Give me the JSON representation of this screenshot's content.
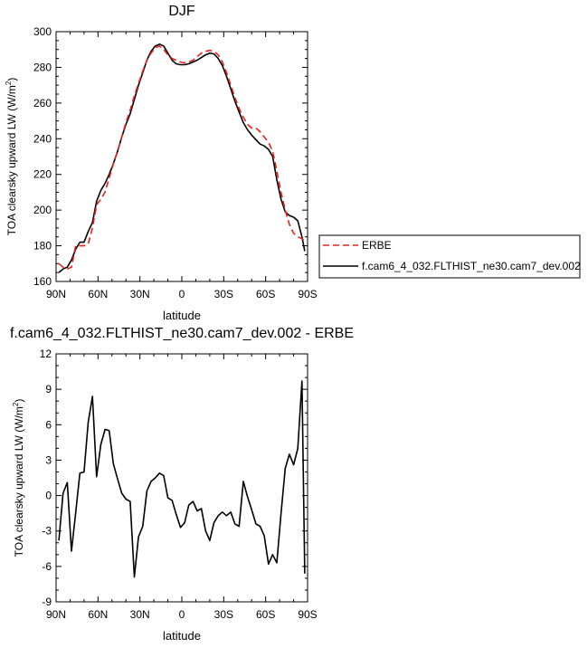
{
  "chart_data": [
    {
      "type": "line",
      "title": "DJF",
      "xlabel": "latitude",
      "ylabel": "TOA clearsky upward LW (W/m²)",
      "ylabel_main": "TOA clearsky upward LW (W/m",
      "ylabel_sup": "2",
      "ylabel_end": ")",
      "xlim": [
        90,
        -90
      ],
      "ylim": [
        160,
        300
      ],
      "x_ticks": [
        {
          "value": 90,
          "label": "90N"
        },
        {
          "value": 60,
          "label": "60N"
        },
        {
          "value": 30,
          "label": "30N"
        },
        {
          "value": 0,
          "label": "0"
        },
        {
          "value": -30,
          "label": "30S"
        },
        {
          "value": -60,
          "label": "60S"
        },
        {
          "value": -90,
          "label": "90S"
        }
      ],
      "y_ticks": [
        {
          "value": 160,
          "label": "160"
        },
        {
          "value": 180,
          "label": "180"
        },
        {
          "value": 200,
          "label": "200"
        },
        {
          "value": 220,
          "label": "220"
        },
        {
          "value": 240,
          "label": "240"
        },
        {
          "value": 260,
          "label": "260"
        },
        {
          "value": 280,
          "label": "280"
        },
        {
          "value": 300,
          "label": "300"
        }
      ],
      "legend_position": "right",
      "series": [
        {
          "name": "ERBE",
          "color": "#e8201c",
          "dash": "dashed",
          "x": [
            88,
            85,
            82,
            79,
            76,
            73,
            70,
            67,
            64,
            61,
            58,
            55,
            52,
            49,
            46,
            43,
            40,
            37,
            34,
            31,
            28,
            25,
            22,
            19,
            16,
            13,
            10,
            7,
            4,
            1,
            -2,
            -5,
            -8,
            -11,
            -14,
            -17,
            -20,
            -23,
            -26,
            -29,
            -32,
            -35,
            -38,
            -41,
            -44,
            -47,
            -50,
            -53,
            -56,
            -59,
            -62,
            -65,
            -68,
            -71,
            -74,
            -77,
            -80,
            -83,
            -86,
            -88
          ],
          "y": [
            170,
            168,
            167,
            168,
            180,
            180,
            180,
            181,
            190,
            203,
            206,
            210,
            218,
            226,
            233,
            241,
            249,
            256,
            264,
            271,
            278,
            284,
            288,
            291,
            292,
            290,
            287,
            285,
            284,
            283,
            282.5,
            283,
            284,
            286,
            288,
            289,
            289.5,
            289,
            287,
            283,
            277,
            270,
            263,
            257,
            252,
            248,
            246,
            246,
            244,
            241,
            238,
            233,
            222,
            210,
            200,
            192,
            187,
            185,
            184,
            183
          ]
        },
        {
          "name": "f.cam6_4_032.FLTHIST_ne30.cam7_dev.002",
          "color": "#000000",
          "dash": "solid",
          "x": [
            88,
            85,
            82,
            79,
            76,
            73,
            70,
            67,
            64,
            61,
            58,
            55,
            52,
            49,
            46,
            43,
            40,
            37,
            34,
            31,
            28,
            25,
            22,
            19,
            16,
            13,
            10,
            7,
            4,
            1,
            -2,
            -5,
            -8,
            -11,
            -14,
            -17,
            -20,
            -23,
            -26,
            -29,
            -32,
            -35,
            -38,
            -41,
            -44,
            -47,
            -50,
            -53,
            -56,
            -59,
            -62,
            -65,
            -68,
            -71,
            -74,
            -77,
            -80,
            -83,
            -86,
            -88
          ],
          "y": [
            165,
            167,
            168,
            172,
            178,
            182,
            182,
            188,
            193,
            205,
            211,
            215,
            220,
            226,
            233,
            241,
            248,
            254,
            262,
            270,
            277,
            284,
            289,
            292,
            293,
            292,
            288,
            284,
            282,
            281.5,
            281.5,
            282,
            283,
            284,
            285.5,
            287,
            288,
            287.5,
            285,
            281,
            275,
            268,
            261,
            255,
            249,
            245,
            242,
            239.5,
            237,
            236,
            234,
            230,
            217,
            206,
            199,
            197,
            196,
            194,
            185,
            177
          ]
        }
      ]
    },
    {
      "type": "line",
      "title": "f.cam6_4_032.FLTHIST_ne30.cam7_dev.002 - ERBE",
      "xlabel": "latitude",
      "ylabel": "TOA clearsky upward LW (W/m²)",
      "ylabel_main": "TOA clearsky upward LW (W/m",
      "ylabel_sup": "2",
      "ylabel_end": ")",
      "xlim": [
        90,
        -90
      ],
      "ylim": [
        -9,
        12
      ],
      "x_ticks": [
        {
          "value": 90,
          "label": "90N"
        },
        {
          "value": 60,
          "label": "60N"
        },
        {
          "value": 30,
          "label": "30N"
        },
        {
          "value": 0,
          "label": "0"
        },
        {
          "value": -30,
          "label": "30S"
        },
        {
          "value": -60,
          "label": "60S"
        },
        {
          "value": -90,
          "label": "90S"
        }
      ],
      "y_ticks": [
        {
          "value": -9,
          "label": "-9"
        },
        {
          "value": -6,
          "label": "-6"
        },
        {
          "value": -3,
          "label": "-3"
        },
        {
          "value": 0,
          "label": "0"
        },
        {
          "value": 3,
          "label": "3"
        },
        {
          "value": 6,
          "label": "6"
        },
        {
          "value": 9,
          "label": "9"
        },
        {
          "value": 12,
          "label": "12"
        }
      ],
      "series": [
        {
          "color": "#000000",
          "dash": "solid",
          "x": [
            88,
            85,
            82,
            79,
            76,
            73,
            70,
            67,
            64,
            61,
            58,
            55,
            52,
            49,
            46,
            43,
            40,
            37,
            34,
            31,
            28,
            25,
            22,
            19,
            16,
            13,
            10,
            7,
            4,
            1,
            -2,
            -5,
            -8,
            -11,
            -14,
            -17,
            -20,
            -23,
            -26,
            -29,
            -32,
            -35,
            -38,
            -41,
            -44,
            -47,
            -50,
            -53,
            -56,
            -59,
            -62,
            -65,
            -68,
            -71,
            -74,
            -77,
            -80,
            -83,
            -86,
            -88
          ],
          "y": [
            -3.8,
            0.2,
            1.1,
            -4.7,
            -1.5,
            1.9,
            2.0,
            6.2,
            8.4,
            1.6,
            4.3,
            5.6,
            5.5,
            2.7,
            1.4,
            0.2,
            -0.3,
            -0.5,
            -6.9,
            -3.5,
            -2.6,
            0.4,
            1.2,
            1.5,
            1.9,
            1.7,
            -0.2,
            -0.4,
            -1.6,
            -2.7,
            -2.3,
            -0.8,
            -0.5,
            -1.3,
            -1.1,
            -3.0,
            -3.8,
            -2.3,
            -1.7,
            -1.4,
            -1.7,
            -1.4,
            -2.4,
            -2.6,
            1.2,
            -0.1,
            -1.2,
            -2.4,
            -2.6,
            -3.4,
            -5.8,
            -5.0,
            -5.7,
            -1.5,
            2.3,
            3.5,
            2.6,
            4.0,
            9.7,
            -6.6
          ]
        }
      ]
    }
  ]
}
